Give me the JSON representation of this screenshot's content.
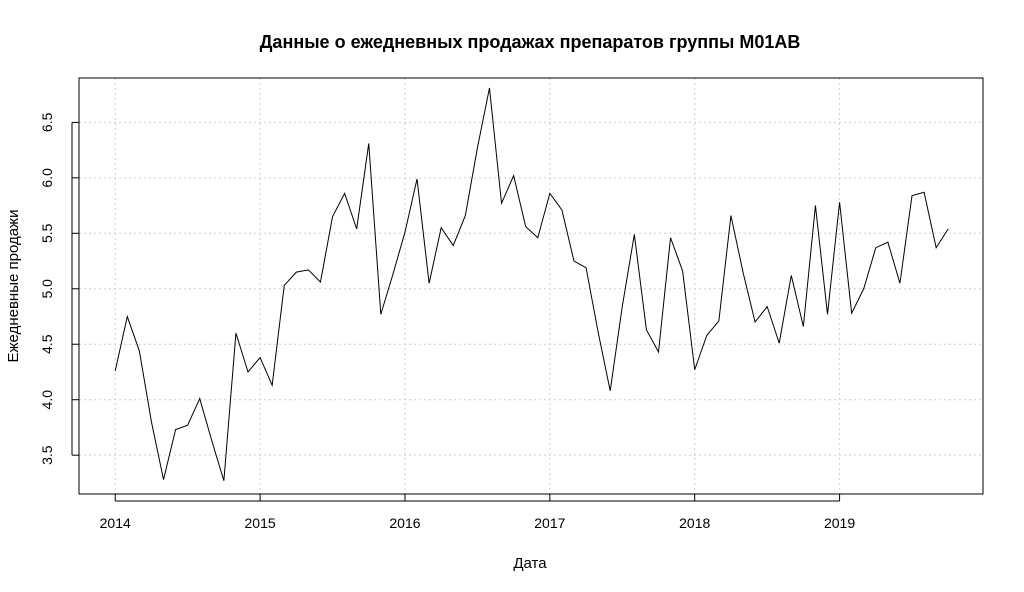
{
  "chart_data": {
    "type": "line",
    "title": "Данные о ежедневных продажах препаратов группы M01AB",
    "xlabel": "Дата",
    "ylabel": "Ежедневные продажи",
    "xlim": [
      2013.75,
      2019.99
    ],
    "ylim": [
      3.15,
      6.9
    ],
    "x_ticks": [
      2014,
      2015,
      2016,
      2017,
      2018,
      2019
    ],
    "x_tick_labels": [
      "2014",
      "2015",
      "2016",
      "2017",
      "2018",
      "2019"
    ],
    "y_ticks": [
      3.5,
      4.0,
      4.5,
      5.0,
      5.5,
      6.0,
      6.5
    ],
    "y_tick_labels": [
      "3.5",
      "4.0",
      "4.5",
      "5.0",
      "5.5",
      "6.0",
      "6.5"
    ],
    "grid": true,
    "x_start": "2014-01",
    "x_frequency": "monthly",
    "values": [
      4.26,
      4.75,
      4.44,
      3.8,
      3.28,
      3.73,
      3.77,
      4.01,
      3.63,
      3.27,
      4.6,
      4.25,
      4.38,
      4.13,
      5.03,
      5.15,
      5.17,
      5.06,
      5.65,
      5.86,
      5.54,
      6.31,
      4.77,
      5.13,
      5.51,
      5.99,
      5.05,
      5.55,
      5.39,
      5.66,
      6.27,
      6.81,
      5.77,
      6.02,
      5.56,
      5.46,
      5.86,
      5.71,
      5.25,
      5.19,
      4.61,
      4.08,
      4.84,
      5.49,
      4.63,
      4.43,
      5.46,
      5.16,
      4.27,
      4.58,
      4.71,
      5.66,
      5.15,
      4.7,
      4.84,
      4.51,
      5.12,
      4.66,
      5.75,
      4.77,
      5.78,
      4.78,
      5.0,
      5.37,
      5.42,
      5.05,
      5.84,
      5.87,
      5.37,
      5.54
    ]
  }
}
